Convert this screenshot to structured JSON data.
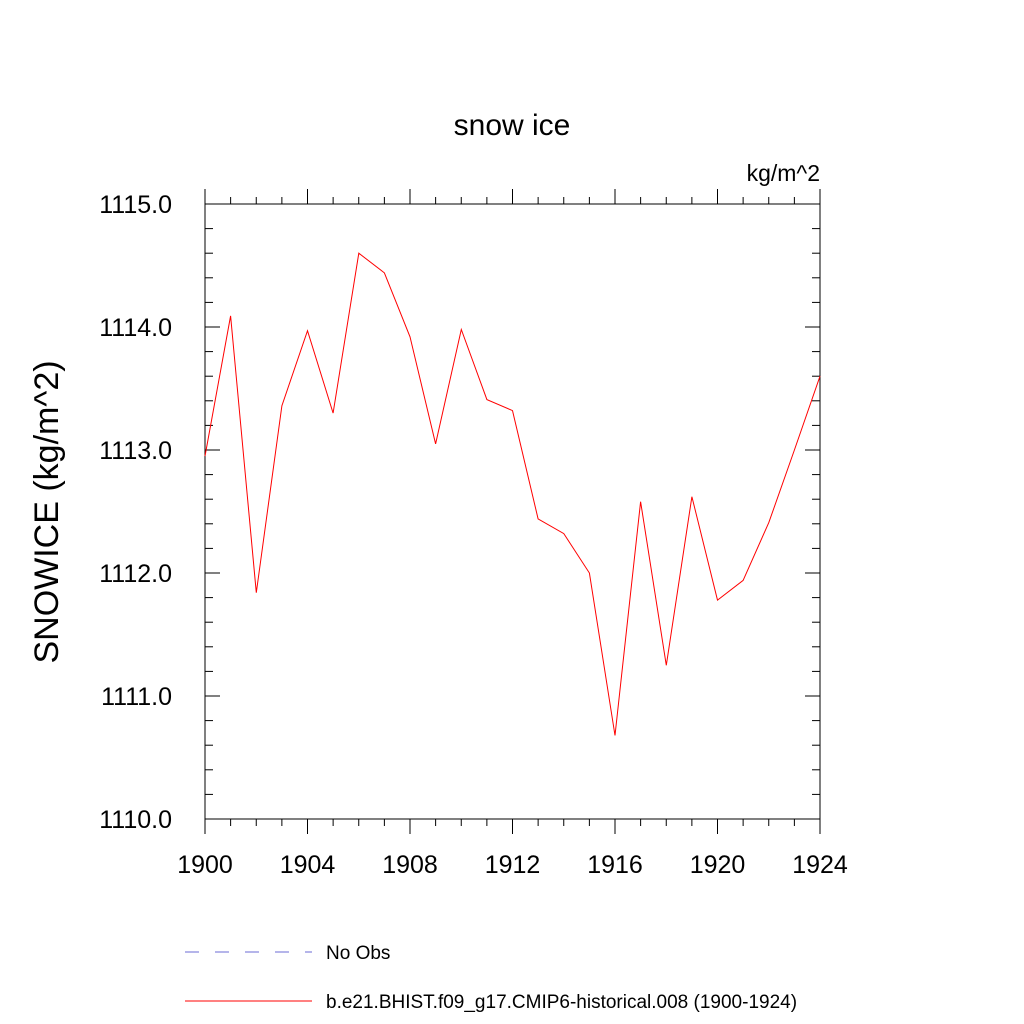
{
  "chart_data": {
    "type": "line",
    "title": "snow ice",
    "units": "kg/m^2",
    "ylabel": "SNOWICE  (kg/m^2)",
    "xlabel": "",
    "xlim": [
      1900,
      1924
    ],
    "ylim": [
      1110.0,
      1115.0
    ],
    "x_ticks": [
      1900,
      1904,
      1908,
      1912,
      1916,
      1920,
      1924
    ],
    "x_tick_labels": [
      "1900",
      "1904",
      "1908",
      "1912",
      "1916",
      "1920",
      "1924"
    ],
    "y_ticks": [
      1110.0,
      1111.0,
      1112.0,
      1113.0,
      1114.0,
      1115.0
    ],
    "y_tick_labels": [
      "1110.0",
      "1111.0",
      "1112.0",
      "1113.0",
      "1114.0",
      "1115.0"
    ],
    "grid": false,
    "legend_position": "bottom",
    "legend": [
      {
        "label": "No Obs",
        "color": "#6b6bd6",
        "style": "dashed"
      },
      {
        "label": "b.e21.BHIST.f09_g17.CMIP6-historical.008 (1900-1924)",
        "color": "#ff0000",
        "style": "solid"
      }
    ],
    "series": [
      {
        "name": "b.e21.BHIST.f09_g17.CMIP6-historical.008 (1900-1924)",
        "color": "#ff0000",
        "x": [
          1900,
          1901,
          1902,
          1903,
          1904,
          1905,
          1906,
          1907,
          1908,
          1909,
          1910,
          1911,
          1912,
          1913,
          1914,
          1915,
          1916,
          1917,
          1918,
          1919,
          1920,
          1921,
          1922,
          1923,
          1924
        ],
        "values": [
          1112.95,
          1114.09,
          1111.84,
          1113.36,
          1113.97,
          1113.3,
          1114.6,
          1114.44,
          1113.92,
          1113.05,
          1113.98,
          1113.41,
          1113.32,
          1112.44,
          1112.32,
          1112.0,
          1110.68,
          1112.58,
          1111.25,
          1112.62,
          1111.78,
          1111.94,
          1112.41,
          1113.0,
          1113.6
        ]
      }
    ]
  }
}
